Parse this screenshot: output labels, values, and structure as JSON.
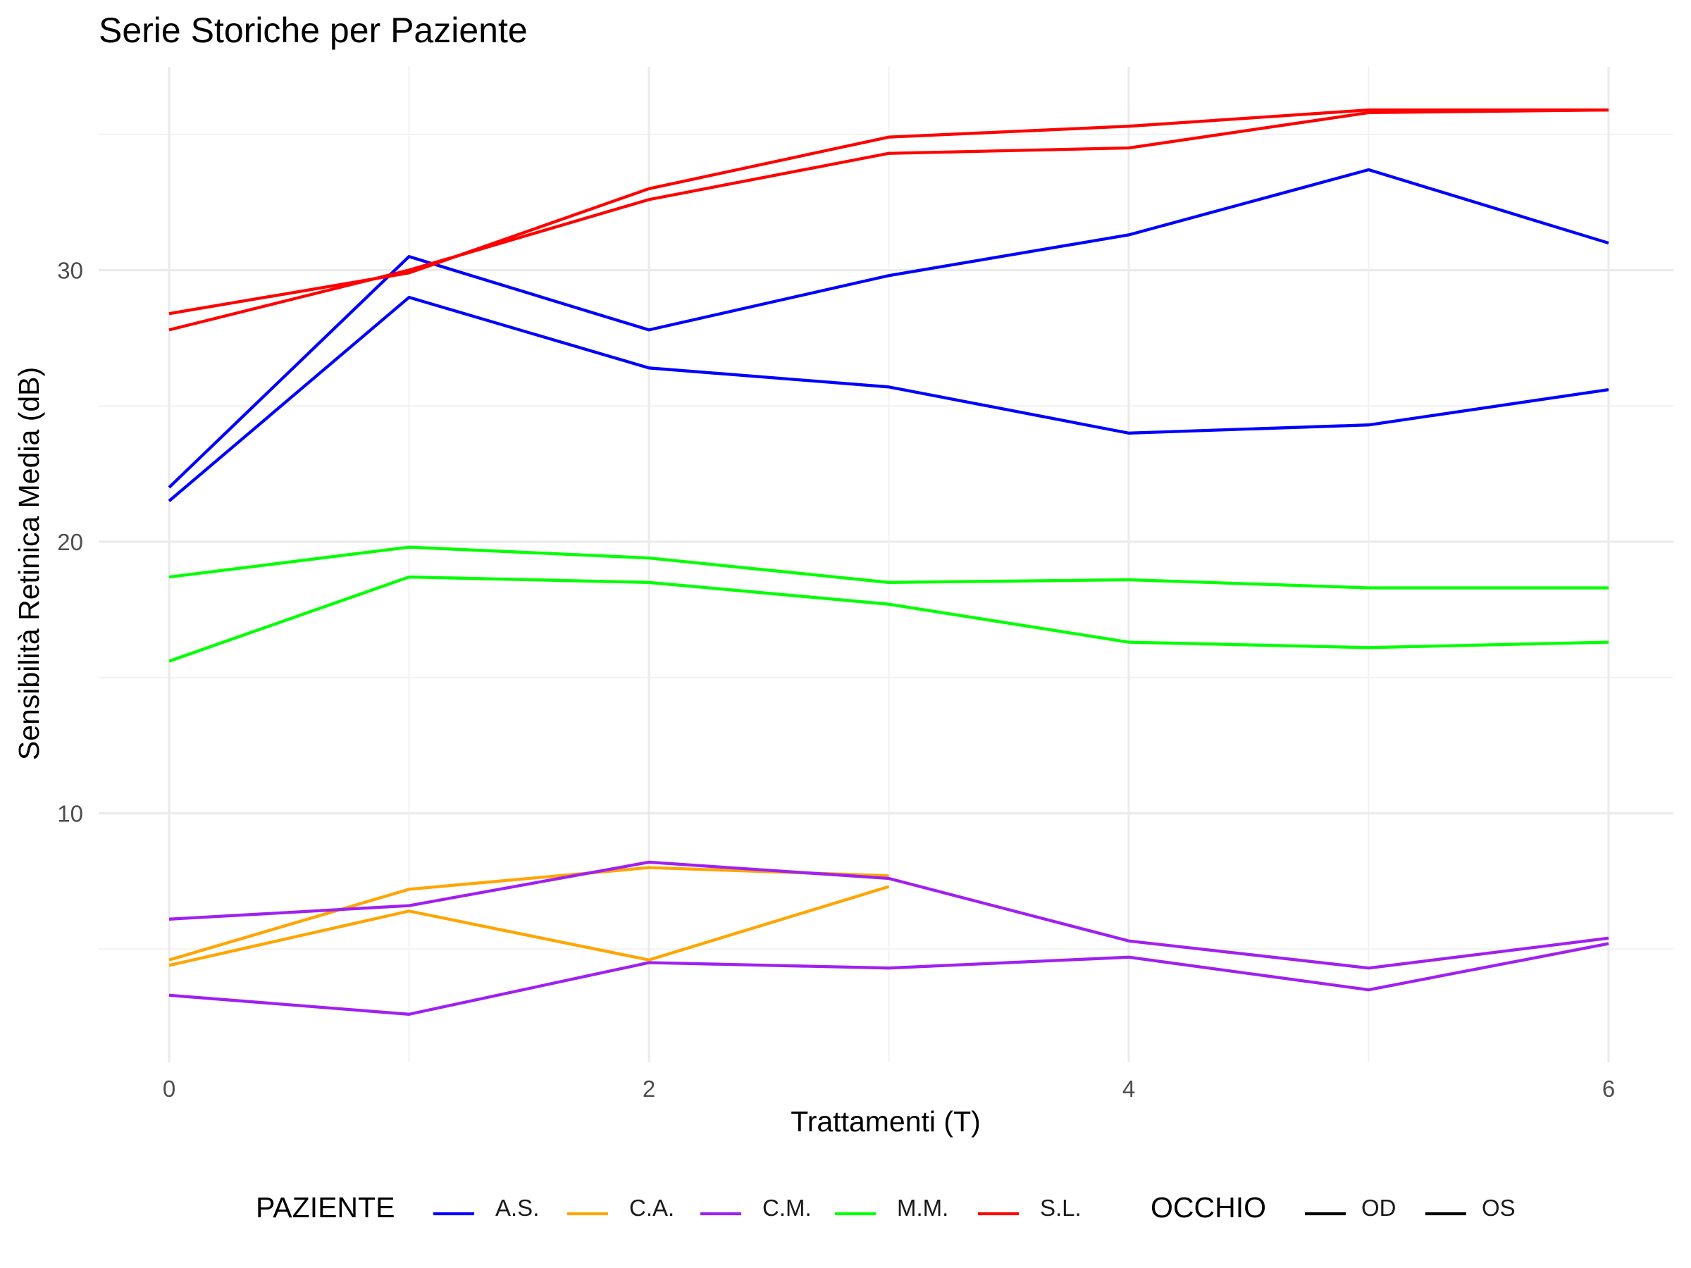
{
  "chart_data": {
    "type": "line",
    "title": "Serie Storiche per Paziente",
    "xlabel": "Trattamenti (T)",
    "ylabel": "Sensibilità Retinica Media (dB)",
    "xlim": [
      -0.3,
      6.3
    ],
    "ylim": [
      1,
      37.5
    ],
    "x_ticks": [
      0,
      2,
      4,
      6
    ],
    "x_tick_labels": [
      "0",
      "2",
      "4",
      "6"
    ],
    "y_ticks": [
      10,
      20,
      30
    ],
    "y_tick_labels": [
      "10",
      "20",
      "30"
    ],
    "grid": true,
    "legend_position": "bottom",
    "legend": {
      "paziente_title": "PAZIENTE",
      "paziente_items": [
        {
          "label": "A.S.",
          "color": "#0000ff"
        },
        {
          "label": "C.A.",
          "color": "#ffa500"
        },
        {
          "label": "C.M.",
          "color": "#a020f0"
        },
        {
          "label": "M.M.",
          "color": "#00ff00"
        },
        {
          "label": "S.L.",
          "color": "#ff0000"
        }
      ],
      "occhio_title": "OCCHIO",
      "occhio_items": [
        {
          "label": "OD",
          "color": "#000000"
        },
        {
          "label": "OS",
          "color": "#000000"
        }
      ]
    },
    "series": [
      {
        "paziente": "A.S.",
        "occhio": "OD",
        "color": "#0000ff",
        "x": [
          0,
          1,
          2,
          3,
          4,
          5,
          6
        ],
        "y": [
          22.0,
          30.5,
          27.8,
          29.8,
          31.3,
          33.7,
          31.0
        ]
      },
      {
        "paziente": "A.S.",
        "occhio": "OS",
        "color": "#0000ff",
        "x": [
          0,
          1,
          2,
          3,
          4,
          5,
          6
        ],
        "y": [
          21.5,
          29.0,
          26.4,
          25.7,
          24.0,
          24.3,
          25.6
        ]
      },
      {
        "paziente": "C.A.",
        "occhio": "OD",
        "color": "#ffa500",
        "x": [
          0,
          1,
          2,
          3
        ],
        "y": [
          4.6,
          7.2,
          8.0,
          7.7
        ]
      },
      {
        "paziente": "C.A.",
        "occhio": "OS",
        "color": "#ffa500",
        "x": [
          0,
          1,
          2,
          3
        ],
        "y": [
          4.4,
          6.4,
          4.6,
          7.3
        ]
      },
      {
        "paziente": "C.M.",
        "occhio": "OD",
        "color": "#a020f0",
        "x": [
          0,
          1,
          2,
          3,
          4,
          5,
          6
        ],
        "y": [
          6.1,
          6.6,
          8.2,
          7.6,
          5.3,
          4.3,
          5.4
        ]
      },
      {
        "paziente": "C.M.",
        "occhio": "OS",
        "color": "#a020f0",
        "x": [
          0,
          1,
          2,
          3,
          4,
          5,
          6
        ],
        "y": [
          3.3,
          2.6,
          4.5,
          4.3,
          4.7,
          3.5,
          5.2
        ]
      },
      {
        "paziente": "M.M.",
        "occhio": "OD",
        "color": "#00ff00",
        "x": [
          0,
          1,
          2,
          3,
          4,
          5,
          6
        ],
        "y": [
          18.7,
          19.8,
          19.4,
          18.5,
          18.6,
          18.3,
          18.3
        ]
      },
      {
        "paziente": "M.M.",
        "occhio": "OS",
        "color": "#00ff00",
        "x": [
          0,
          1,
          2,
          3,
          4,
          5,
          6
        ],
        "y": [
          15.6,
          18.7,
          18.5,
          17.7,
          16.3,
          16.1,
          16.3
        ]
      },
      {
        "paziente": "S.L.",
        "occhio": "OD",
        "color": "#ff0000",
        "x": [
          0,
          1,
          2,
          3,
          4,
          5,
          6
        ],
        "y": [
          28.4,
          29.9,
          33.0,
          34.9,
          35.3,
          35.9,
          35.9
        ]
      },
      {
        "paziente": "S.L.",
        "occhio": "OS",
        "color": "#ff0000",
        "x": [
          0,
          1,
          2,
          3,
          4,
          5,
          6
        ],
        "y": [
          27.8,
          30.0,
          32.6,
          34.3,
          34.5,
          35.8,
          35.9
        ]
      }
    ]
  }
}
